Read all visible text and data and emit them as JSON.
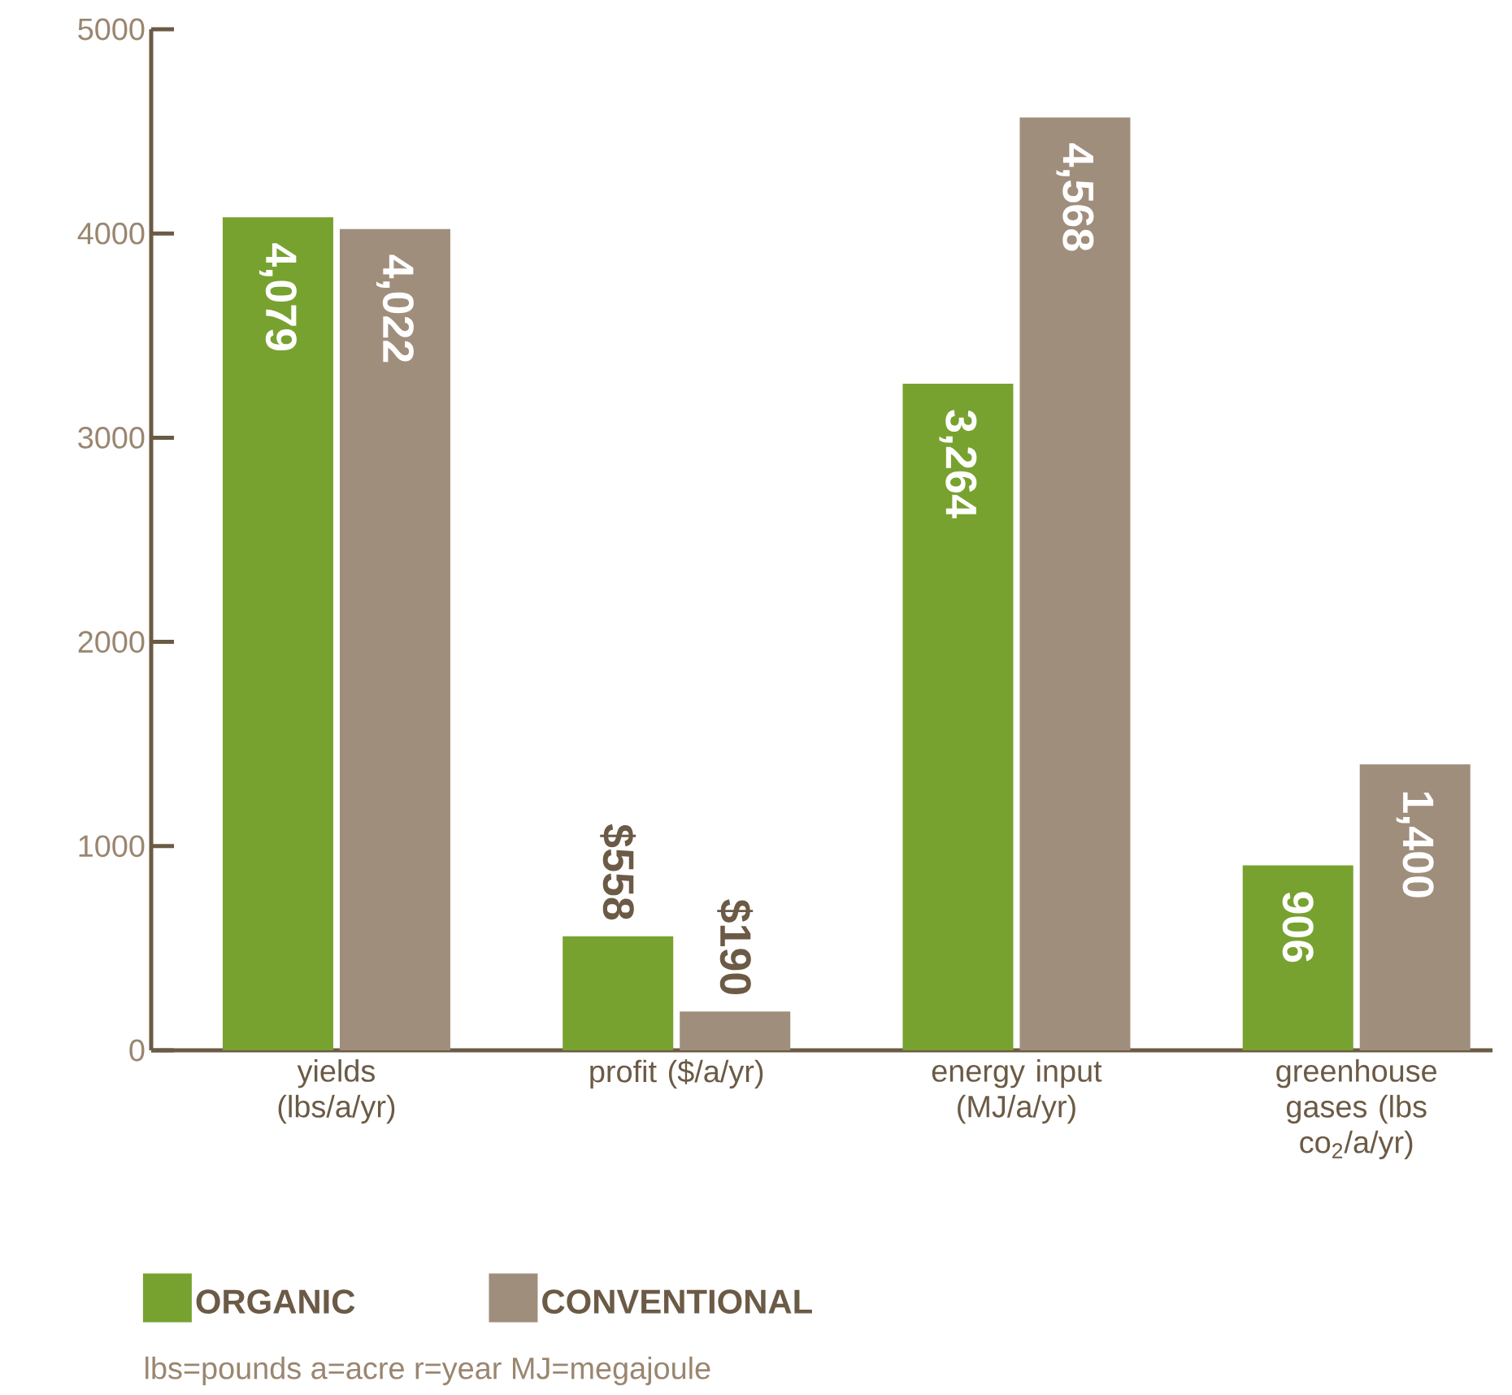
{
  "chart_data": {
    "type": "bar",
    "categories": [
      "yields (lbs/a/yr)",
      "profit ($/a/yr)",
      "energy input (MJ/a/yr)",
      "greenhouse gases (lbs co$_{2}$/a/yr)"
    ],
    "series": [
      {
        "name": "ORGANIC",
        "color": "#77a22f",
        "values": [
          4079,
          558,
          3264,
          906
        ],
        "value_labels": [
          "4,079",
          "$558",
          "3,264",
          "906"
        ]
      },
      {
        "name": "CONVENTIONAL",
        "color": "#a08e7c",
        "values": [
          4022,
          190,
          4568,
          1400
        ],
        "value_labels": [
          "4,022",
          "$190",
          "4,568",
          "1,400"
        ]
      }
    ],
    "ylim": [
      0,
      5000
    ],
    "yticks": [
      0,
      1000,
      2000,
      3000,
      4000,
      5000
    ],
    "legend": "bottom",
    "annotations": [
      "lbs=pounds   a=acre   r=year   MJ=megajoule"
    ]
  }
}
